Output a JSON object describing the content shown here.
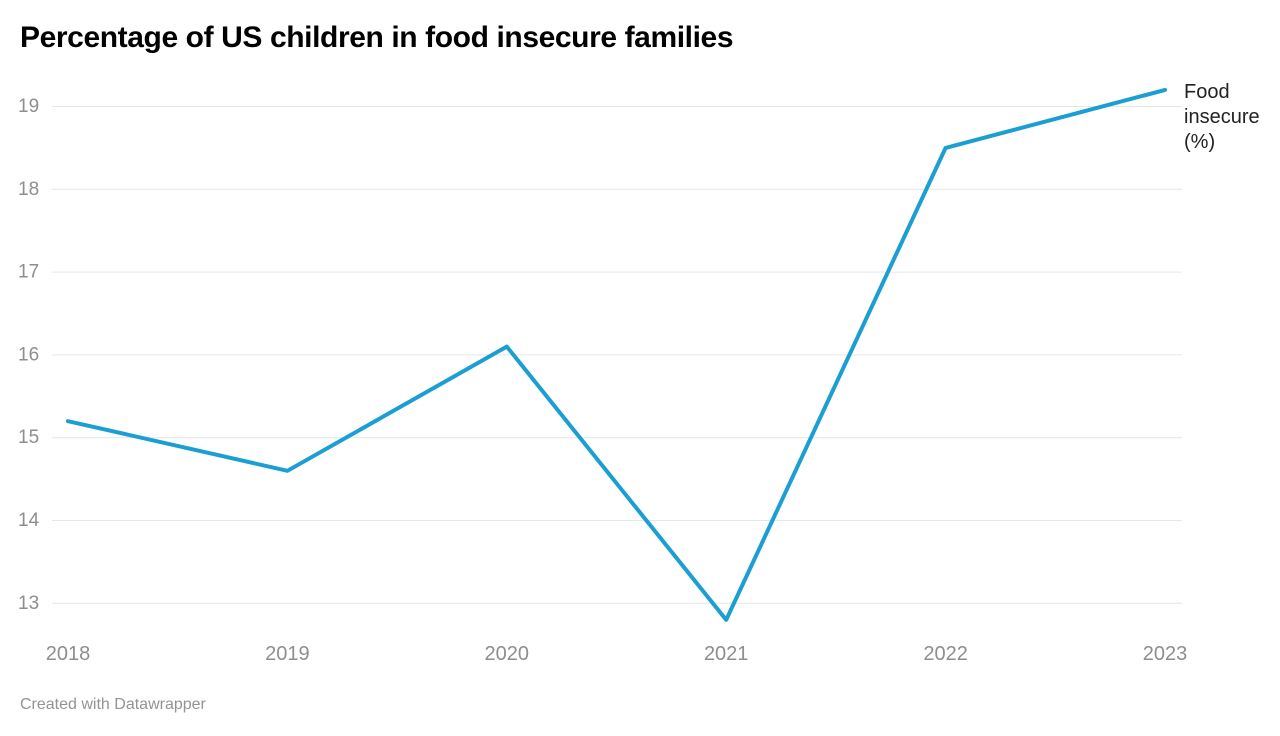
{
  "header": {
    "title": "Percentage of US children in food insecure families"
  },
  "chart_data": {
    "type": "line",
    "title": "Percentage of US children in food insecure families",
    "x": [
      "2018",
      "2019",
      "2020",
      "2021",
      "2022",
      "2023"
    ],
    "series": [
      {
        "name": "Food insecure (%)",
        "label_lines": [
          "Food",
          "insecure",
          "(%)"
        ],
        "values": [
          15.2,
          14.6,
          16.1,
          12.8,
          18.5,
          19.2
        ]
      }
    ],
    "y_ticks": [
      19,
      18,
      17,
      16,
      15,
      14,
      13
    ],
    "ylim": [
      12.6,
      19.35
    ],
    "grid": true,
    "legend_position": "right-of-line-end",
    "xlabel": "",
    "ylabel": ""
  },
  "footer": {
    "text": "Created with Datawrapper"
  },
  "colors": {
    "line": "#1b9fd2",
    "grid": "#e6e6e6",
    "tick_text": "#8e8e8e",
    "series_label_text": "#222222",
    "title_text": "#000000",
    "background": "#ffffff"
  }
}
